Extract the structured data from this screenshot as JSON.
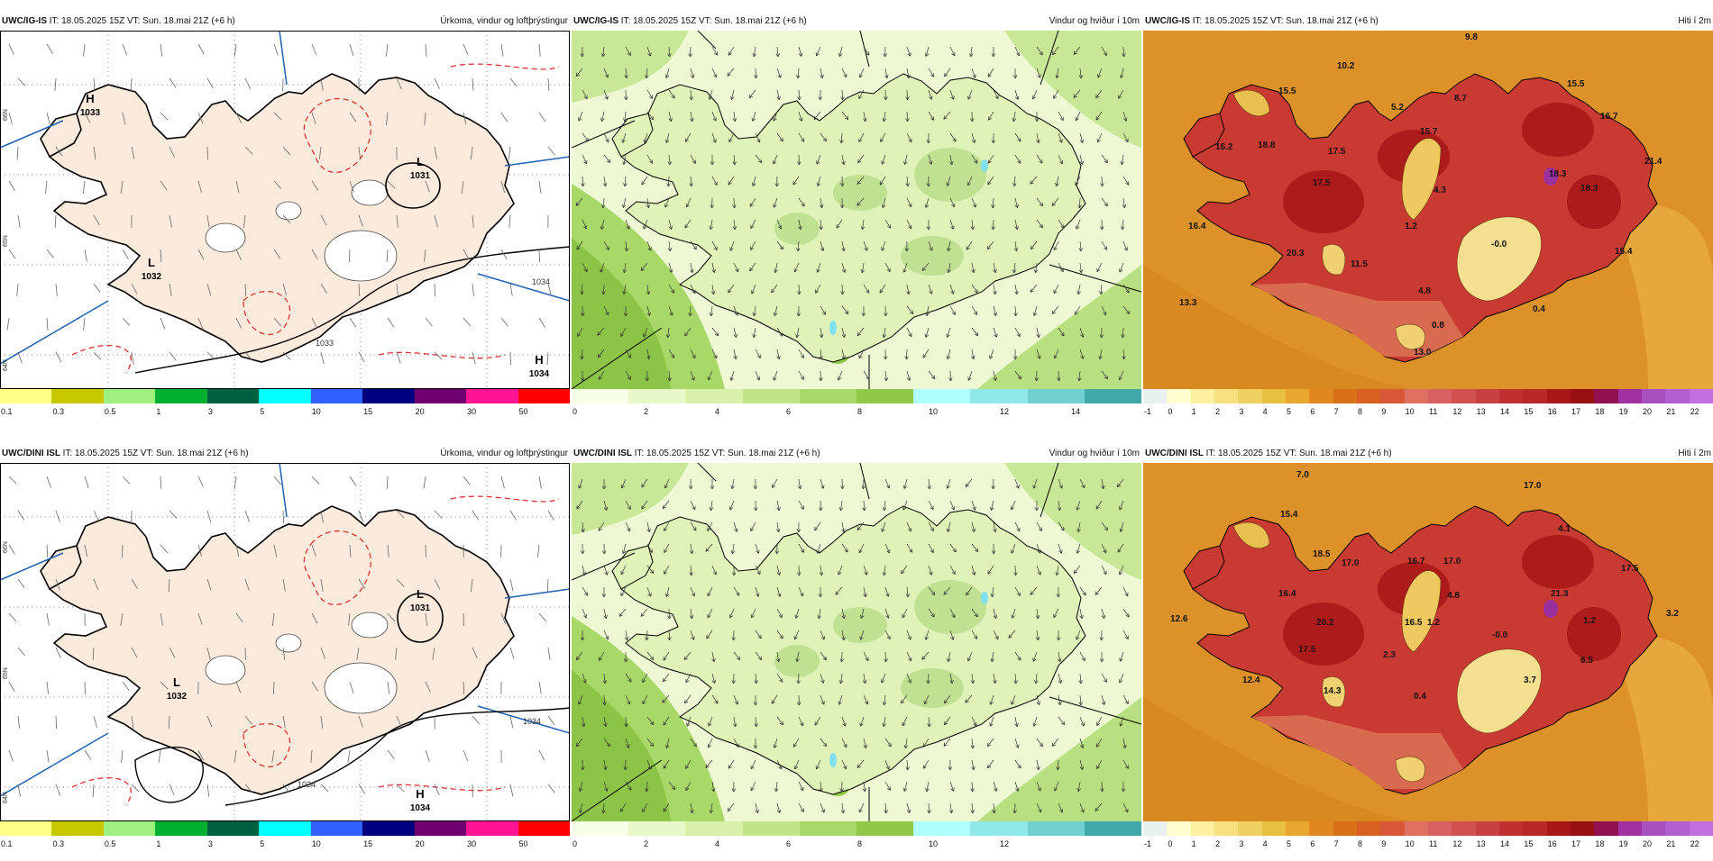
{
  "rows": [
    {
      "id": "igis",
      "panels": [
        {
          "model": "UWC/IG-IS",
          "meta": "IT: 18.05.2025 15Z VT: Sun. 18.mai 21Z (+6 h)",
          "title": "Úrkoma, vindur og loftþrýstingur",
          "lat_labels": [
            "66N",
            "65N",
            "64N"
          ],
          "pressure_labels": [
            {
              "text": "H",
              "value": "1033"
            },
            {
              "text": "L",
              "value": "1031"
            },
            {
              "text": "L",
              "value": "1032"
            },
            {
              "text": "H",
              "value": "1034"
            }
          ],
          "isobar_labels": [
            "1033",
            "1034"
          ]
        },
        {
          "model": "UWC/IG-IS",
          "meta": "IT: 18.05.2025 15Z VT: Sun. 18.mai 21Z (+6 h)",
          "title": "Vindur og hviður í 10m"
        },
        {
          "model": "UWC/IG-IS",
          "meta": "IT: 18.05.2025 15Z VT: Sun. 18.mai 21Z (+6 h)",
          "title": "Hiti í 2m",
          "temps": [
            "9.8",
            "10.2",
            "15.5",
            "15.5",
            "8.7",
            "5.2",
            "16.7",
            "16.2",
            "18.8",
            "17.5",
            "17.5",
            "15.7",
            "21.4",
            "18.3",
            "18.3",
            "4.3",
            "16.4",
            "1.2",
            "-0.0",
            "20.3",
            "11.5",
            "15.4",
            "4.8",
            "13.3",
            "0.8",
            "0.4",
            "13.0"
          ]
        }
      ]
    },
    {
      "id": "dini",
      "panels": [
        {
          "model": "UWC/DINI ISL",
          "meta": "IT: 18.05.2025 15Z VT: Sun. 18.mai 21Z (+6 h)",
          "title": "Úrkoma, vindur og loftþrýstingur",
          "lat_labels": [
            "66N",
            "65N",
            "64N"
          ],
          "pressure_labels": [
            {
              "text": "L",
              "value": "1031"
            },
            {
              "text": "L",
              "value": "1032"
            },
            {
              "text": "H",
              "value": "1034"
            }
          ],
          "isobar_labels": [
            "1034",
            "1034"
          ]
        },
        {
          "model": "UWC/DINI ISL",
          "meta": "IT: 18.05.2025 15Z VT: Sun. 18.mai 21Z (+6 h)",
          "title": "Vindur og hviður í 10m"
        },
        {
          "model": "UWC/DINI ISL",
          "meta": "IT: 18.05.2025 15Z VT: Sun. 18.mai 21Z (+6 h)",
          "title": "Hiti í 2m",
          "temps": [
            "7.0",
            "17.0",
            "15.4",
            "4.1",
            "18.5",
            "17.0",
            "16.7",
            "17.0",
            "17.5",
            "21.3",
            "16.4",
            "4.8",
            "3.2",
            "12.6",
            "20.2",
            "16.5",
            "1.2",
            "-0.0",
            "1.2",
            "17.5",
            "2.3",
            "6.5",
            "12.4",
            "3.7",
            "14.3",
            "0.4"
          ]
        }
      ]
    }
  ],
  "colorbars": {
    "precip": {
      "ticks": [
        "0.1",
        "0.3",
        "0.5",
        "1",
        "3",
        "5",
        "10",
        "15",
        "20",
        "30",
        "50"
      ],
      "colors": [
        "#ffff88",
        "#c8c800",
        "#a0f080",
        "#00b030",
        "#006040",
        "#00ffff",
        "#3060ff",
        "#000080",
        "#700070",
        "#ff1493",
        "#ff0000"
      ]
    },
    "wind": {
      "ticks": [
        "0",
        "2",
        "4",
        "6",
        "8",
        "10",
        "12",
        "14"
      ],
      "ticks_dini": [
        "0",
        "2",
        "4",
        "6",
        "8",
        "10",
        "12"
      ],
      "colors": [
        "#f8ffe8",
        "#e8f8c8",
        "#d8f0a8",
        "#c0e488",
        "#a8d868",
        "#90c848",
        "#b0ffff",
        "#90e8e8",
        "#70d0d0",
        "#40a8a8"
      ]
    },
    "temp": {
      "ticks": [
        "-1",
        "0",
        "1",
        "2",
        "3",
        "4",
        "5",
        "6",
        "7",
        "8",
        "9",
        "10",
        "11",
        "12",
        "13",
        "14",
        "15",
        "16",
        "17",
        "18",
        "19",
        "20",
        "21",
        "22"
      ],
      "colors": [
        "#e8f0f0",
        "#ffffd0",
        "#fff0a0",
        "#f8e080",
        "#f0d060",
        "#e8c040",
        "#e8a830",
        "#e08820",
        "#d87018",
        "#d86020",
        "#d85838",
        "#e07060",
        "#d86060",
        "#d05050",
        "#c84040",
        "#c03030",
        "#b82828",
        "#a81818",
        "#981010",
        "#901050",
        "#a030a0",
        "#a850c0",
        "#b060d0",
        "#c070e0"
      ]
    }
  }
}
